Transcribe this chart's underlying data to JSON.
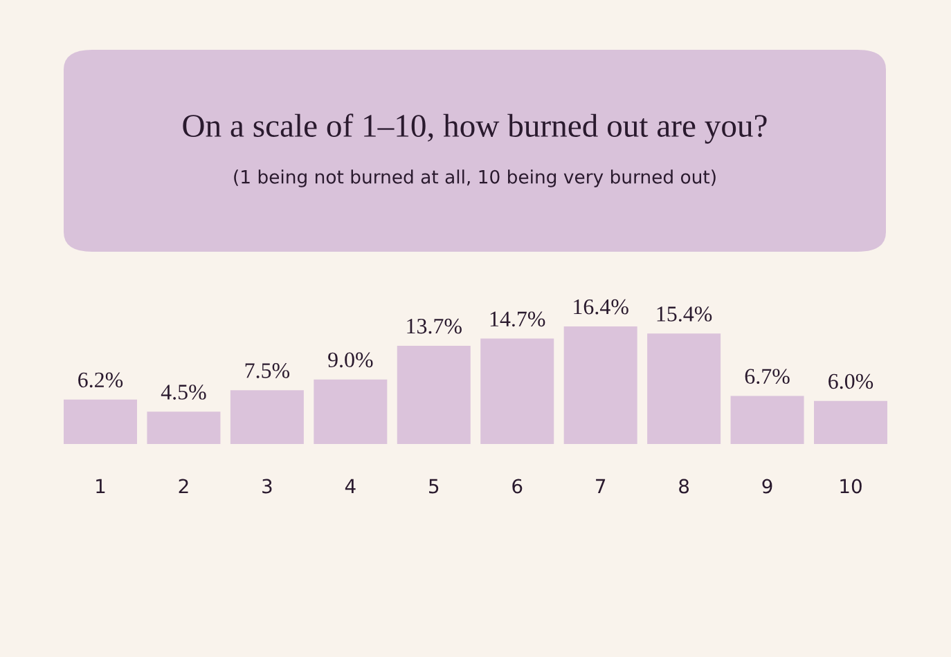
{
  "chart_data": {
    "type": "bar",
    "title": "On a scale of 1–10, how burned out are you?",
    "subtitle": "(1 being not burned at all, 10 being very burned out)",
    "categories": [
      "1",
      "2",
      "3",
      "4",
      "5",
      "6",
      "7",
      "8",
      "9",
      "10"
    ],
    "values": [
      6.2,
      4.5,
      7.5,
      9.0,
      13.7,
      14.7,
      16.4,
      15.4,
      6.7,
      6.0
    ],
    "value_labels": [
      "6.2%",
      "4.5%",
      "7.5%",
      "9.0%",
      "13.7%",
      "14.7%",
      "16.4%",
      "15.4%",
      "6.7%",
      "6.0%"
    ],
    "color": "#dbc3db",
    "grid": false,
    "legend": false
  }
}
